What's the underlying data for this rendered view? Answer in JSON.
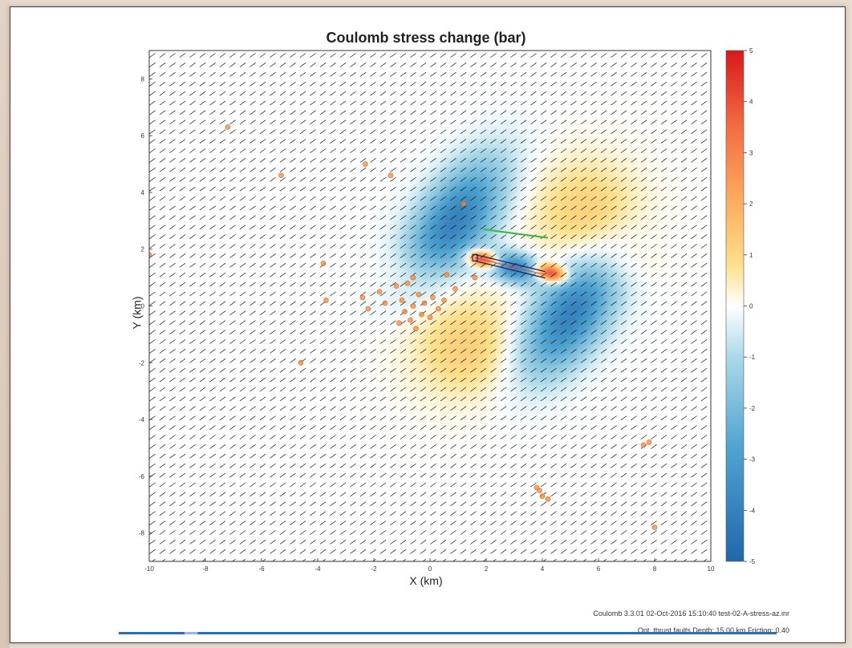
{
  "chart_data": {
    "type": "heatmap",
    "title": "Coulomb stress change (bar)",
    "xlabel": "X (km)",
    "ylabel": "Y (km)",
    "xlim": [
      -10,
      10
    ],
    "ylim": [
      -9,
      9
    ],
    "x_ticks": [
      "-10",
      "-8",
      "-6",
      "-4",
      "-2",
      "0",
      "2",
      "4",
      "6",
      "8",
      "10"
    ],
    "y_ticks": [
      "8",
      "6",
      "4",
      "2",
      "0",
      "-2",
      "-4",
      "-6",
      "-8"
    ],
    "colorbar": {
      "range": [
        -5,
        5
      ],
      "ticks": [
        "5",
        "4",
        "3",
        "2",
        "1",
        "0",
        "-1",
        "-2",
        "-3",
        "-4",
        "-5"
      ],
      "colors": [
        "#d7191c",
        "#f46d43",
        "#fdae61",
        "#fee08b",
        "#ffffff",
        "#abd9e9",
        "#4fa3d1",
        "#2166ac"
      ]
    },
    "grid": false,
    "lobes": [
      {
        "cx": 1.9,
        "cy": 1.65,
        "sign": 1,
        "amp": 5,
        "rx": 0.55,
        "ry": 0.28,
        "angle": -12
      },
      {
        "cx": 4.3,
        "cy": 1.15,
        "sign": 1,
        "amp": 5,
        "rx": 0.55,
        "ry": 0.3,
        "angle": -12
      },
      {
        "cx": 0.9,
        "cy": 3.0,
        "sign": -1,
        "amp": 4,
        "rx": 1.2,
        "ry": 2.4,
        "angle": -35
      },
      {
        "cx": 5.0,
        "cy": -0.3,
        "sign": -1,
        "amp": 4,
        "rx": 1.2,
        "ry": 2.4,
        "angle": -35
      },
      {
        "cx": 3.0,
        "cy": 1.35,
        "sign": -1,
        "amp": 4,
        "rx": 0.9,
        "ry": 0.5,
        "angle": -12
      },
      {
        "cx": 5.6,
        "cy": 3.3,
        "sign": 1,
        "amp": 1.2,
        "rx": 1.9,
        "ry": 1.8,
        "angle": 0
      },
      {
        "cx": 1.3,
        "cy": -1.4,
        "sign": 1,
        "amp": 1.2,
        "rx": 1.9,
        "ry": 1.8,
        "angle": 0
      },
      {
        "cx": -0.4,
        "cy": 1.2,
        "sign": 1,
        "amp": 0.6,
        "rx": 1.3,
        "ry": 0.8,
        "angle": 0
      },
      {
        "cx": 6.5,
        "cy": 1.5,
        "sign": 1,
        "amp": 0.6,
        "rx": 1.3,
        "ry": 0.8,
        "angle": 0
      }
    ],
    "fault": {
      "x1": 1.6,
      "y1": 1.7,
      "x2": 4.1,
      "y2": 1.1
    },
    "receiver_fault": {
      "x1": 1.9,
      "y1": 2.7,
      "x2": 4.2,
      "y2": 2.4
    },
    "aftershocks": [
      {
        "x": -7.2,
        "y": 6.3
      },
      {
        "x": -5.3,
        "y": 4.6
      },
      {
        "x": -10.0,
        "y": 1.8
      },
      {
        "x": -3.8,
        "y": 1.5
      },
      {
        "x": -3.7,
        "y": 0.2
      },
      {
        "x": -4.6,
        "y": -2.0
      },
      {
        "x": -2.3,
        "y": 5.0
      },
      {
        "x": -1.4,
        "y": 4.6
      },
      {
        "x": -2.4,
        "y": 0.3
      },
      {
        "x": -2.2,
        "y": -0.1
      },
      {
        "x": -1.8,
        "y": 0.5
      },
      {
        "x": -1.6,
        "y": 0.1
      },
      {
        "x": -1.2,
        "y": 0.7
      },
      {
        "x": -1.0,
        "y": 0.2
      },
      {
        "x": -0.9,
        "y": -0.2
      },
      {
        "x": -0.7,
        "y": -0.5
      },
      {
        "x": -0.6,
        "y": 0.0
      },
      {
        "x": -0.5,
        "y": -0.8
      },
      {
        "x": -0.4,
        "y": 0.4
      },
      {
        "x": -0.3,
        "y": -0.3
      },
      {
        "x": -0.2,
        "y": 0.1
      },
      {
        "x": 0.0,
        "y": -0.4
      },
      {
        "x": 0.1,
        "y": 0.3
      },
      {
        "x": 0.3,
        "y": -0.1
      },
      {
        "x": 0.5,
        "y": 0.2
      },
      {
        "x": -0.8,
        "y": 0.8
      },
      {
        "x": -0.6,
        "y": 1.0
      },
      {
        "x": -1.1,
        "y": -0.6
      },
      {
        "x": 0.6,
        "y": 1.1
      },
      {
        "x": 0.9,
        "y": 0.6
      },
      {
        "x": 1.2,
        "y": 3.6
      },
      {
        "x": 1.6,
        "y": 1.0
      },
      {
        "x": 3.9,
        "y": -6.5
      },
      {
        "x": 4.0,
        "y": -6.7
      },
      {
        "x": 3.8,
        "y": -6.4
      },
      {
        "x": 4.2,
        "y": -6.8
      },
      {
        "x": 7.6,
        "y": -4.9
      },
      {
        "x": 7.8,
        "y": -4.8
      },
      {
        "x": 8.0,
        "y": -7.8
      }
    ]
  },
  "footer": {
    "line1": "Coulomb 3.3.01 02-Oct-2016 15:10:40 test-02-A-stress-az.inr",
    "line2": "Opt. thrust faults  Depth: 15.00 km  Friction: 0.40"
  }
}
